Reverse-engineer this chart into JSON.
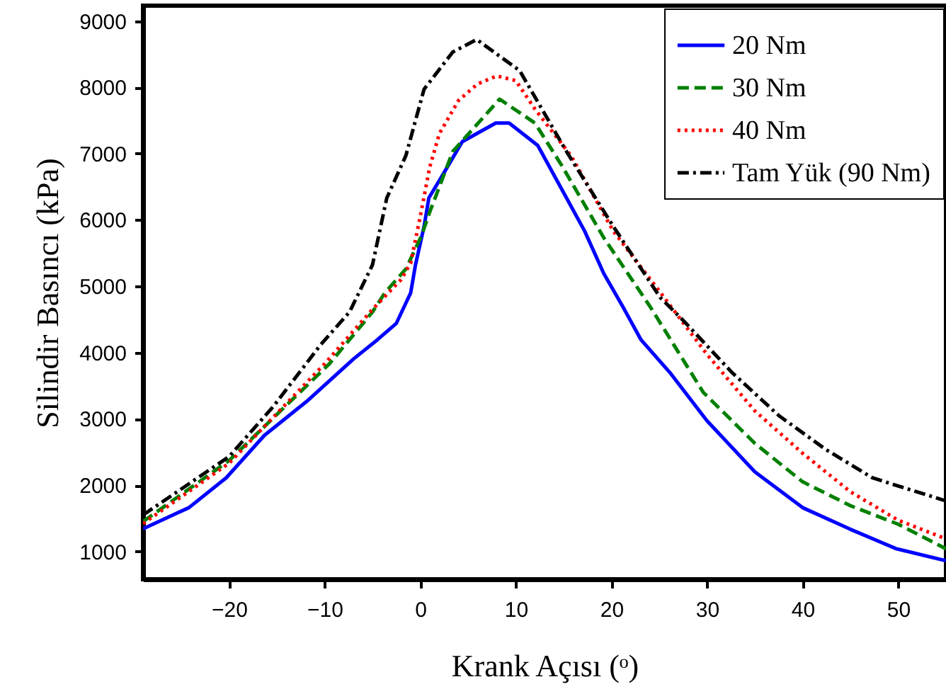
{
  "chart_data": {
    "type": "line",
    "xlabel": "Krank Açısı (ᵒ)",
    "ylabel": "Silindir  Basıncı (kPa)",
    "xlim": [
      -29,
      55
    ],
    "ylim": [
      580,
      9230
    ],
    "xticks": [
      -20,
      -10,
      0,
      10,
      20,
      30,
      40,
      50
    ],
    "yticks": [
      1000,
      2000,
      3000,
      4000,
      5000,
      6000,
      7000,
      8000,
      9000
    ],
    "grid": false,
    "legend": "top right",
    "series": [
      {
        "name": "20 Nm",
        "color": "#0000ff",
        "line_style": "solid",
        "x": [
          -29,
          -24.2,
          -20.3,
          -16.3,
          -11.9,
          -7,
          -4.5,
          -2.5,
          -1,
          -0.5,
          0.4,
          0.9,
          2.4,
          4.4,
          7.9,
          9.3,
          12.3,
          15.3,
          17.2,
          19.2,
          21.2,
          23.1,
          26.1,
          30,
          35,
          40,
          44.9,
          49.8,
          55
        ],
        "values": [
          1340,
          1660,
          2110,
          2750,
          3260,
          3900,
          4190,
          4440,
          4900,
          5320,
          5900,
          6330,
          6690,
          7180,
          7460,
          7460,
          7120,
          6330,
          5830,
          5190,
          4690,
          4190,
          3700,
          2970,
          2200,
          1660,
          1340,
          1040,
          860
        ]
      },
      {
        "name": "30 Nm",
        "color": "#008000",
        "line_style": "dashed",
        "x": [
          -29,
          -20,
          -9.5,
          -5,
          -3.7,
          -1.5,
          0.1,
          1,
          3.4,
          8.3,
          12,
          14.8,
          19.2,
          24.1,
          29.6,
          35,
          40,
          45,
          50,
          55
        ],
        "values": [
          1450,
          2370,
          3830,
          4610,
          4900,
          5260,
          5750,
          6120,
          7030,
          7820,
          7460,
          6820,
          5730,
          4680,
          3400,
          2630,
          2050,
          1690,
          1410,
          1040
        ]
      },
      {
        "name": "40 Nm",
        "color": "#ff0000",
        "line_style": "dotted",
        "x": [
          -29,
          -20,
          -10,
          -5,
          -2,
          -1,
          0,
          1,
          2,
          4,
          6,
          8,
          10,
          12,
          15.8,
          20.2,
          25.2,
          30,
          35,
          40,
          45,
          50,
          55
        ],
        "values": [
          1420,
          2330,
          3830,
          4650,
          5100,
          5350,
          6050,
          6800,
          7300,
          7800,
          8050,
          8170,
          8100,
          7670,
          6960,
          5830,
          4890,
          3970,
          3120,
          2480,
          1900,
          1470,
          1190
        ]
      },
      {
        "name": "Tam Yük (90 Nm)",
        "color": "#000000",
        "line_style": "dashdot",
        "x": [
          -29,
          -20,
          -15.4,
          -10.4,
          -7.4,
          -5,
          -3.5,
          -1.5,
          0.4,
          3.4,
          5.9,
          10.4,
          15.3,
          20.2,
          25.1,
          27.6,
          32.6,
          37.5,
          42.4,
          47.3,
          54.8
        ],
        "values": [
          1550,
          2430,
          3180,
          4120,
          4610,
          5320,
          6330,
          6970,
          7970,
          8530,
          8720,
          8250,
          7030,
          5900,
          4830,
          4470,
          3700,
          3050,
          2540,
          2110,
          1770
        ]
      }
    ]
  }
}
